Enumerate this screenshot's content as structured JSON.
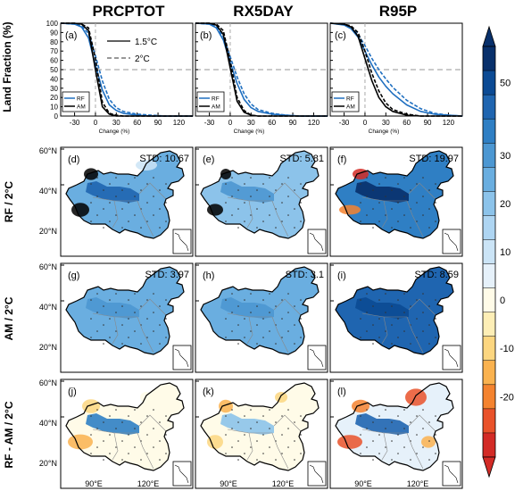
{
  "columns": [
    "PRCPTOT",
    "RX5DAY",
    "R95P"
  ],
  "rows": [
    "RF / 2°C",
    "AM / 2°C",
    "RF - AM / 2°C"
  ],
  "line_panels": {
    "ylabel": "Land Fraction (%)",
    "xlabel": "Change (%)",
    "xticks": [
      "-30",
      "0",
      "30",
      "60",
      "90",
      "120"
    ],
    "yticks": [
      "0",
      "10",
      "20",
      "30",
      "40",
      "50",
      "60",
      "70",
      "80",
      "90",
      "100"
    ],
    "line_legend": [
      "1.5°C",
      "2°C"
    ],
    "model_legend": [
      "RF",
      "AM"
    ]
  },
  "map_panels": {
    "lat_labels": [
      "60°N",
      "40°N",
      "20°N"
    ],
    "lon_labels": [
      "90°E",
      "120°E"
    ],
    "std_texts": [
      "STD: 10.67",
      "STD: 5.81",
      "STD: 19.97",
      "STD: 3.97",
      "STD: 3.1",
      "STD: 8.59"
    ]
  },
  "panel_letters": [
    "(a)",
    "(b)",
    "(c)",
    "(d)",
    "(e)",
    "(f)",
    "(g)",
    "(h)",
    "(i)",
    "(j)",
    "(k)",
    "(l)"
  ],
  "colorbar": {
    "labels": [
      "50",
      "30",
      "20",
      "10",
      "0",
      "-10",
      "-20"
    ],
    "colors": [
      "#08306b",
      "#0b4a94",
      "#1f65b0",
      "#2f7fc4",
      "#4c97d2",
      "#6aaee0",
      "#8cc3ea",
      "#aed5f2",
      "#cbe4f6",
      "#e6f1fa",
      "#fffbe8",
      "#fdeeb6",
      "#fcd680",
      "#fab24f",
      "#f4832f",
      "#e9522a",
      "#d32b26"
    ],
    "label_index": [
      1,
      4,
      6,
      8,
      10,
      12,
      14
    ]
  },
  "chart_data": [
    {
      "type": "line",
      "panel": "(a)",
      "title": "PRCPTOT",
      "xlabel": "Change (%)",
      "ylabel": "Land Fraction (%)",
      "xlim": [
        -50,
        140
      ],
      "ylim": [
        0,
        100
      ],
      "x": [
        -50,
        -30,
        -20,
        -10,
        0,
        10,
        20,
        30,
        40,
        60,
        80,
        100,
        120,
        140
      ],
      "series": [
        {
          "name": "RF",
          "warming": "1.5°C",
          "color": "#1f6fc0",
          "values": [
            100,
            99,
            96,
            84,
            55,
            28,
            12,
            6,
            3,
            1,
            0,
            0,
            0,
            0
          ]
        },
        {
          "name": "RF",
          "warming": "2°C",
          "color": "#1f6fc0",
          "values": [
            100,
            99,
            97,
            89,
            65,
            38,
            18,
            9,
            5,
            2,
            1,
            0,
            0,
            0
          ]
        },
        {
          "name": "AM",
          "warming": "1.5°C",
          "color": "#000000",
          "values": [
            100,
            100,
            99,
            92,
            50,
            10,
            2,
            0,
            0,
            0,
            0,
            0,
            0,
            0
          ]
        },
        {
          "name": "AM",
          "warming": "2°C",
          "color": "#000000",
          "values": [
            100,
            100,
            99,
            95,
            62,
            15,
            3,
            1,
            0,
            0,
            0,
            0,
            0,
            0
          ]
        }
      ]
    },
    {
      "type": "line",
      "panel": "(b)",
      "title": "RX5DAY",
      "xlabel": "Change (%)",
      "xlim": [
        -50,
        140
      ],
      "ylim": [
        0,
        100
      ],
      "x": [
        -50,
        -30,
        -20,
        -10,
        0,
        10,
        20,
        30,
        40,
        60,
        80,
        100,
        120,
        140
      ],
      "series": [
        {
          "name": "RF",
          "warming": "1.5°C",
          "color": "#1f6fc0",
          "values": [
            100,
            99,
            95,
            82,
            58,
            35,
            18,
            9,
            5,
            2,
            1,
            0,
            0,
            0
          ]
        },
        {
          "name": "RF",
          "warming": "2°C",
          "color": "#1f6fc0",
          "values": [
            100,
            99,
            96,
            86,
            64,
            42,
            24,
            13,
            7,
            3,
            1,
            0,
            0,
            0
          ]
        },
        {
          "name": "AM",
          "warming": "1.5°C",
          "color": "#000000",
          "values": [
            100,
            100,
            98,
            88,
            52,
            16,
            4,
            1,
            0,
            0,
            0,
            0,
            0,
            0
          ]
        },
        {
          "name": "AM",
          "warming": "2°C",
          "color": "#000000",
          "values": [
            100,
            100,
            99,
            92,
            60,
            20,
            6,
            1,
            0,
            0,
            0,
            0,
            0,
            0
          ]
        }
      ]
    },
    {
      "type": "line",
      "panel": "(c)",
      "title": "R95P",
      "xlabel": "Change (%)",
      "xlim": [
        -50,
        140
      ],
      "ylim": [
        0,
        100
      ],
      "x": [
        -50,
        -30,
        -20,
        -10,
        0,
        10,
        20,
        30,
        40,
        60,
        80,
        100,
        120,
        140
      ],
      "series": [
        {
          "name": "RF",
          "warming": "1.5°C",
          "color": "#1f6fc0",
          "values": [
            100,
            98,
            94,
            85,
            70,
            55,
            42,
            32,
            24,
            12,
            5,
            2,
            1,
            0
          ]
        },
        {
          "name": "RF",
          "warming": "2°C",
          "color": "#1f6fc0",
          "values": [
            100,
            99,
            96,
            88,
            76,
            62,
            50,
            40,
            31,
            17,
            8,
            3,
            1,
            0
          ]
        },
        {
          "name": "AM",
          "warming": "1.5°C",
          "color": "#000000",
          "values": [
            100,
            99,
            96,
            86,
            62,
            38,
            20,
            10,
            5,
            1,
            0,
            0,
            0,
            0
          ]
        },
        {
          "name": "AM",
          "warming": "2°C",
          "color": "#000000",
          "values": [
            100,
            99,
            97,
            90,
            70,
            46,
            27,
            14,
            7,
            2,
            0,
            0,
            0,
            0
          ]
        }
      ]
    },
    {
      "type": "heatmap",
      "panels": [
        "(d)",
        "(e)",
        "(f)",
        "(g)",
        "(h)",
        "(i)",
        "(j)",
        "(k)",
        "(l)"
      ],
      "std": [
        "STD: 10.67",
        "STD: 5.81",
        "STD: 19.97",
        "STD: 3.97",
        "STD: 3.1",
        "STD: 8.59"
      ],
      "colorbar_ticks": [
        50,
        30,
        20,
        10,
        0,
        -10,
        -20
      ]
    }
  ]
}
